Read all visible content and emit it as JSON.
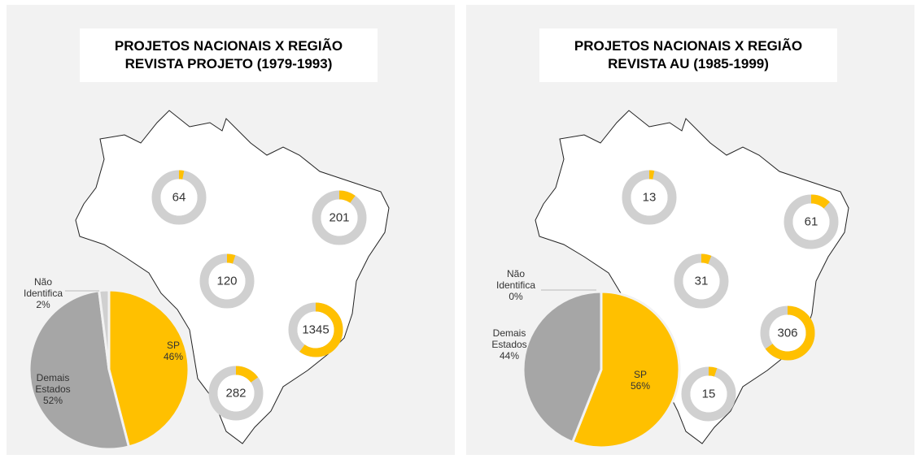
{
  "chart_data": [
    {
      "type": "pie",
      "title": "PROJETOS NACIONAIS X REGIÃO",
      "subtitle": "REVISTA PROJETO (1979-1993)",
      "categories": [
        "SP",
        "Demais Estados",
        "Não Identifica"
      ],
      "values": [
        46,
        52,
        2
      ],
      "value_labels": [
        "46%",
        "52%",
        "2%"
      ],
      "colors": [
        "#ffc000",
        "#a6a6a6",
        "#d0d0d0"
      ],
      "donuts": {
        "values": [
          64,
          201,
          120,
          1345,
          282
        ],
        "shares": [
          3,
          10,
          5,
          60,
          15
        ],
        "color": "#ffc000",
        "track": "#d0d0d0"
      }
    },
    {
      "type": "pie",
      "title": "PROJETOS NACIONAIS X REGIÃO",
      "subtitle": "REVISTA AU (1985-1999)",
      "categories": [
        "SP",
        "Demais Estados",
        "Não Identifica"
      ],
      "values": [
        56,
        44,
        0
      ],
      "value_labels": [
        "56%",
        "44%",
        "0%"
      ],
      "colors": [
        "#ffc000",
        "#a6a6a6",
        "#d0d0d0"
      ],
      "donuts": {
        "values": [
          13,
          61,
          31,
          306,
          15
        ],
        "shares": [
          3,
          12,
          6,
          65,
          5
        ],
        "color": "#ffc000",
        "track": "#d0d0d0"
      }
    }
  ]
}
